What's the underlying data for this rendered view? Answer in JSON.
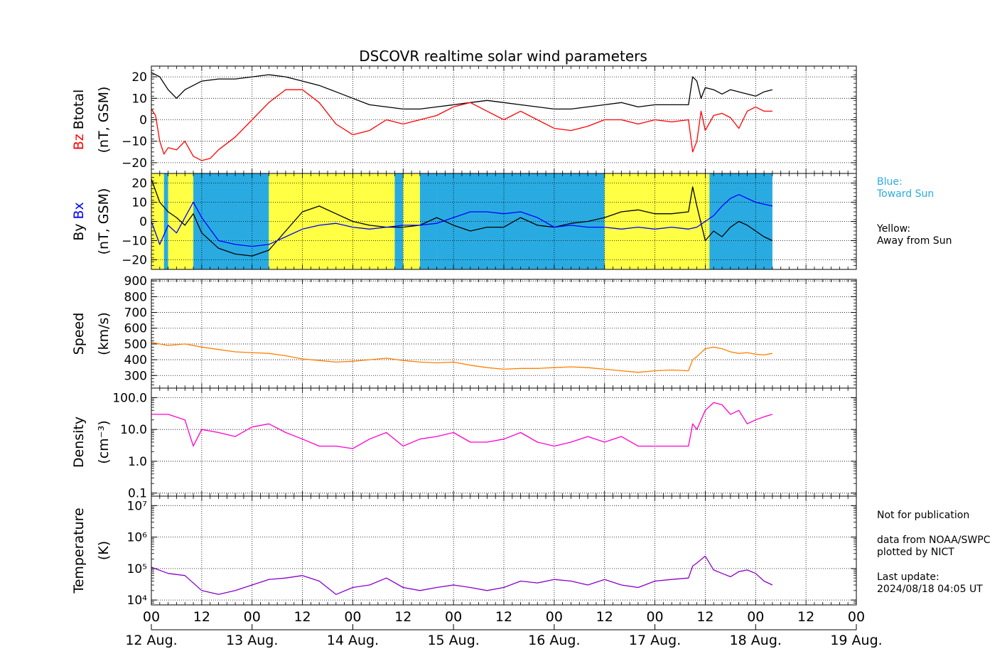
{
  "title": "DSCOVR realtime solar wind parameters",
  "colors": {
    "bz": "#ff0000",
    "btotal": "#000000",
    "bx": "#0000ff",
    "by": "#000000",
    "speed": "#ff8000",
    "density": "#ff00cc",
    "temperature": "#8800cc",
    "toward_sun_band": "#29abe2",
    "away_from_sun_band": "#ffff44",
    "note_blue": "#29abe2"
  },
  "notes": {
    "blue_label": "Blue:",
    "blue_desc": "Toward Sun",
    "yellow_label": "Yellow:",
    "yellow_desc": "Away from Sun",
    "not_for_publication": "Not for publication",
    "data_from": "data from NOAA/SWPC",
    "plotted_by": "plotted by NICT",
    "last_update_label": "Last update:",
    "last_update": "2024/08/18 04:05 UT"
  },
  "chart_data": [
    {
      "type": "line",
      "id": "btotal",
      "ylabel_parts": [
        "Bz",
        "Btotal"
      ],
      "ylabel_unit": "(nT, GSM)",
      "ylim": [
        -25,
        25
      ],
      "yticks": [
        -20,
        -10,
        0,
        10,
        20
      ],
      "ytick_labels": [
        "−20",
        "−10",
        "0",
        "10",
        "20"
      ],
      "scale": "linear",
      "series": [
        {
          "name": "Btotal",
          "x": [
            0,
            2,
            4,
            6,
            8,
            10,
            12,
            16,
            20,
            24,
            28,
            32,
            36,
            40,
            44,
            48,
            52,
            56,
            60,
            64,
            68,
            72,
            76,
            80,
            84,
            88,
            92,
            96,
            100,
            104,
            108,
            112,
            116,
            120,
            124,
            128,
            129,
            130,
            131,
            132,
            134,
            136,
            138,
            140,
            142,
            144,
            146,
            148
          ],
          "y": [
            22,
            20,
            14,
            10,
            14,
            16,
            18,
            19,
            19,
            20,
            21,
            20,
            18,
            16,
            13,
            10,
            7,
            6,
            5,
            5,
            6,
            7,
            8,
            9,
            8,
            7,
            6,
            5,
            5,
            6,
            7,
            8,
            6,
            7,
            7,
            7,
            20,
            18,
            10,
            15,
            14,
            12,
            14,
            13,
            12,
            11,
            13,
            14
          ]
        },
        {
          "name": "Bz",
          "x": [
            0,
            1,
            2,
            3,
            4,
            6,
            8,
            10,
            12,
            14,
            16,
            20,
            24,
            28,
            32,
            36,
            40,
            44,
            48,
            52,
            56,
            60,
            64,
            68,
            72,
            76,
            80,
            84,
            88,
            92,
            96,
            100,
            104,
            108,
            112,
            116,
            120,
            124,
            128,
            129,
            130,
            131,
            132,
            134,
            136,
            138,
            140,
            142,
            144,
            146,
            148
          ],
          "y": [
            5,
            2,
            -10,
            -16,
            -13,
            -14,
            -10,
            -17,
            -19,
            -18,
            -14,
            -8,
            0,
            8,
            14,
            14,
            8,
            -2,
            -7,
            -5,
            0,
            -2,
            0,
            2,
            6,
            8,
            4,
            0,
            4,
            0,
            -4,
            -5,
            -3,
            0,
            0,
            -2,
            0,
            -1,
            0,
            -15,
            -10,
            4,
            -5,
            2,
            3,
            1,
            -4,
            4,
            6,
            4,
            4
          ]
        }
      ]
    },
    {
      "type": "line",
      "id": "bxby",
      "ylabel_parts": [
        "By",
        "Bx"
      ],
      "ylabel_unit": "(nT, GSM)",
      "ylim": [
        -25,
        25
      ],
      "yticks": [
        -20,
        -10,
        0,
        10,
        20
      ],
      "ytick_labels": [
        "−20",
        "−10",
        "0",
        "10",
        "20"
      ],
      "scale": "linear",
      "sector_bands": [
        {
          "from": 0,
          "to": 3,
          "color": "away"
        },
        {
          "from": 3,
          "to": 4,
          "color": "toward"
        },
        {
          "from": 4,
          "to": 10,
          "color": "away"
        },
        {
          "from": 10,
          "to": 28,
          "color": "toward"
        },
        {
          "from": 28,
          "to": 58,
          "color": "away"
        },
        {
          "from": 58,
          "to": 60,
          "color": "toward"
        },
        {
          "from": 60,
          "to": 64,
          "color": "away"
        },
        {
          "from": 64,
          "to": 68,
          "color": "toward"
        },
        {
          "from": 68,
          "to": 108,
          "color": "toward"
        },
        {
          "from": 108,
          "to": 133,
          "color": "away"
        },
        {
          "from": 133,
          "to": 148,
          "color": "toward"
        }
      ],
      "series": [
        {
          "name": "By",
          "x": [
            0,
            2,
            4,
            6,
            8,
            10,
            12,
            16,
            20,
            24,
            28,
            32,
            36,
            40,
            44,
            48,
            52,
            56,
            60,
            64,
            68,
            72,
            76,
            80,
            84,
            88,
            92,
            96,
            100,
            104,
            108,
            112,
            116,
            120,
            124,
            128,
            129,
            130,
            132,
            134,
            136,
            138,
            140,
            142,
            144,
            146,
            148
          ],
          "y": [
            22,
            10,
            5,
            2,
            -2,
            4,
            -6,
            -14,
            -17,
            -18,
            -15,
            -5,
            5,
            8,
            4,
            0,
            -2,
            -3,
            -3,
            -2,
            2,
            -2,
            -5,
            -3,
            -3,
            2,
            -2,
            -3,
            -1,
            0,
            2,
            5,
            6,
            4,
            4,
            5,
            18,
            8,
            -10,
            -5,
            -8,
            -3,
            0,
            -2,
            -5,
            -8,
            -10
          ]
        },
        {
          "name": "Bx",
          "x": [
            0,
            2,
            4,
            6,
            8,
            10,
            12,
            16,
            20,
            24,
            28,
            32,
            36,
            40,
            44,
            48,
            52,
            56,
            60,
            64,
            68,
            72,
            76,
            80,
            84,
            88,
            92,
            96,
            100,
            104,
            108,
            112,
            116,
            120,
            124,
            128,
            130,
            132,
            134,
            136,
            138,
            140,
            142,
            144,
            146,
            148
          ],
          "y": [
            0,
            -12,
            -2,
            -6,
            2,
            10,
            2,
            -10,
            -12,
            -13,
            -12,
            -8,
            -4,
            -2,
            -1,
            -3,
            -4,
            -3,
            -2,
            -2,
            -1,
            2,
            5,
            5,
            4,
            5,
            2,
            -3,
            -2,
            -3,
            -3,
            -4,
            -3,
            -4,
            -3,
            -4,
            -3,
            0,
            3,
            8,
            12,
            14,
            12,
            10,
            9,
            8
          ]
        }
      ]
    },
    {
      "type": "line",
      "id": "speed",
      "ylabel_parts": [
        "Speed"
      ],
      "ylabel_unit": "(km/s)",
      "ylim": [
        220,
        910
      ],
      "yticks": [
        300,
        400,
        500,
        600,
        700,
        800,
        900
      ],
      "ytick_labels": [
        "300",
        "400",
        "500",
        "600",
        "700",
        "800",
        "900"
      ],
      "scale": "linear",
      "series": [
        {
          "name": "Speed",
          "x": [
            0,
            4,
            8,
            12,
            16,
            20,
            24,
            28,
            32,
            36,
            40,
            44,
            48,
            52,
            56,
            60,
            64,
            68,
            72,
            76,
            80,
            84,
            88,
            92,
            96,
            100,
            104,
            108,
            112,
            116,
            120,
            124,
            128,
            129,
            130,
            132,
            134,
            136,
            138,
            140,
            142,
            144,
            146,
            148
          ],
          "y": [
            510,
            490,
            500,
            480,
            465,
            450,
            445,
            440,
            425,
            405,
            395,
            385,
            390,
            400,
            410,
            395,
            385,
            380,
            385,
            365,
            350,
            340,
            345,
            345,
            350,
            355,
            350,
            340,
            330,
            320,
            330,
            335,
            330,
            400,
            420,
            470,
            480,
            470,
            450,
            440,
            445,
            435,
            430,
            440
          ]
        }
      ]
    },
    {
      "type": "line",
      "id": "density",
      "ylabel_parts": [
        "Density"
      ],
      "ylabel_unit": "(cm⁻³)",
      "ylim": [
        0.08,
        200
      ],
      "yticks": [
        0.1,
        1.0,
        10.0,
        100.0
      ],
      "ytick_labels": [
        "0.1",
        "1.0",
        "10.0",
        "100.0"
      ],
      "scale": "log",
      "series": [
        {
          "name": "Density",
          "x": [
            0,
            4,
            8,
            10,
            12,
            16,
            20,
            24,
            28,
            32,
            36,
            40,
            44,
            48,
            52,
            56,
            60,
            64,
            68,
            72,
            76,
            80,
            84,
            88,
            92,
            96,
            100,
            104,
            108,
            112,
            116,
            120,
            124,
            128,
            129,
            130,
            132,
            134,
            136,
            138,
            140,
            142,
            144,
            146,
            148
          ],
          "y": [
            30,
            30,
            20,
            3,
            10,
            8,
            6,
            12,
            15,
            8,
            5,
            3,
            3,
            2.5,
            5,
            8,
            3,
            5,
            6,
            8,
            4,
            4,
            5,
            8,
            4,
            3,
            4,
            6,
            4,
            6,
            3,
            3,
            3,
            3,
            15,
            10,
            40,
            70,
            60,
            30,
            40,
            15,
            20,
            25,
            30
          ]
        }
      ]
    },
    {
      "type": "line",
      "id": "temperature",
      "ylabel_parts": [
        "Temperature"
      ],
      "ylabel_unit": "(K)",
      "ylim": [
        7000,
        20000000
      ],
      "yticks": [
        10000,
        100000,
        1000000,
        10000000
      ],
      "ytick_labels": [
        "10⁴",
        "10⁵",
        "10⁶",
        "10⁷"
      ],
      "scale": "log",
      "series": [
        {
          "name": "Temperature",
          "x": [
            0,
            4,
            8,
            12,
            16,
            20,
            24,
            28,
            32,
            36,
            40,
            44,
            48,
            52,
            56,
            60,
            64,
            68,
            72,
            76,
            80,
            84,
            88,
            92,
            96,
            100,
            104,
            108,
            112,
            116,
            120,
            124,
            128,
            129,
            130,
            132,
            134,
            136,
            138,
            140,
            142,
            144,
            146,
            148
          ],
          "y": [
            110000,
            70000,
            60000,
            20000,
            15000,
            20000,
            30000,
            45000,
            50000,
            60000,
            40000,
            15000,
            25000,
            30000,
            50000,
            25000,
            20000,
            25000,
            30000,
            25000,
            20000,
            25000,
            40000,
            35000,
            45000,
            40000,
            30000,
            45000,
            30000,
            25000,
            40000,
            45000,
            50000,
            120000,
            150000,
            250000,
            90000,
            70000,
            55000,
            80000,
            90000,
            70000,
            40000,
            30000
          ]
        }
      ]
    }
  ],
  "x_axis": {
    "xlim": [
      0,
      168
    ],
    "major_ticks": [
      0,
      12,
      24,
      36,
      48,
      60,
      72,
      84,
      96,
      108,
      120,
      132,
      144,
      156,
      168
    ],
    "hour_labels": [
      "00",
      "12",
      "00",
      "12",
      "00",
      "12",
      "00",
      "12",
      "00",
      "12",
      "00",
      "12",
      "00",
      "12",
      "00"
    ],
    "date_labels": [
      "12 Aug.",
      "13 Aug.",
      "14 Aug.",
      "15 Aug.",
      "16 Aug.",
      "17 Aug.",
      "18 Aug.",
      "19 Aug."
    ]
  }
}
